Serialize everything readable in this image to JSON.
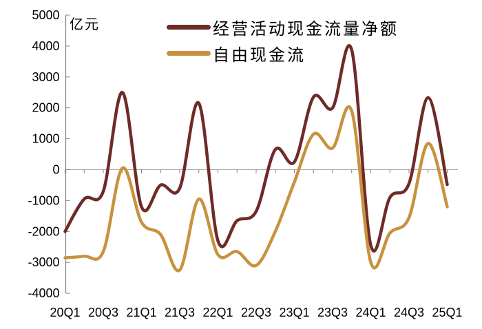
{
  "unit_label": "亿元",
  "legend": [
    {
      "label": "经营活动现金流量净额",
      "color": "#6E2B27"
    },
    {
      "label": "自由现金流",
      "color": "#C8923E"
    }
  ],
  "chart_data": {
    "type": "line",
    "smooth": true,
    "title": "",
    "ylabel": "亿元",
    "xlabel": "",
    "ylim": [
      -4000,
      5000
    ],
    "y_ticks": [
      5000,
      4000,
      3000,
      2000,
      1000,
      0,
      -1000,
      -2000,
      -3000,
      -4000
    ],
    "grid": "zero-line-only",
    "legend_position": "top-center",
    "x": [
      "20Q1",
      "20Q2",
      "20Q3",
      "20Q4",
      "21Q1",
      "21Q2",
      "21Q3",
      "21Q4",
      "22Q1",
      "22Q2",
      "22Q3",
      "22Q4",
      "23Q1",
      "23Q2",
      "23Q3",
      "23Q4",
      "24Q1",
      "24Q2",
      "24Q3",
      "24Q4",
      "25Q1"
    ],
    "x_axis_labels": [
      "20Q1",
      "20Q3",
      "21Q1",
      "21Q3",
      "22Q1",
      "22Q3",
      "23Q1",
      "23Q3",
      "24Q1",
      "24Q3",
      "25Q1"
    ],
    "series": [
      {
        "name": "经营活动现金流量净额",
        "color": "#6E2B27",
        "values": [
          -2000,
          -950,
          -700,
          2500,
          -1200,
          -500,
          -600,
          2150,
          -2300,
          -1650,
          -1350,
          650,
          250,
          2350,
          2000,
          3870,
          -2450,
          -900,
          -450,
          2330,
          -480
        ]
      },
      {
        "name": "自由现金流",
        "color": "#C8923E",
        "values": [
          -2850,
          -2800,
          -2650,
          50,
          -1700,
          -2100,
          -3250,
          -950,
          -2750,
          -2650,
          -3100,
          -2000,
          -400,
          1150,
          700,
          1900,
          -3000,
          -2050,
          -1550,
          850,
          -1200
        ]
      }
    ],
    "colors": {
      "axis": "#808080",
      "gridline": "#A6A6A6",
      "text": "#000000"
    }
  }
}
